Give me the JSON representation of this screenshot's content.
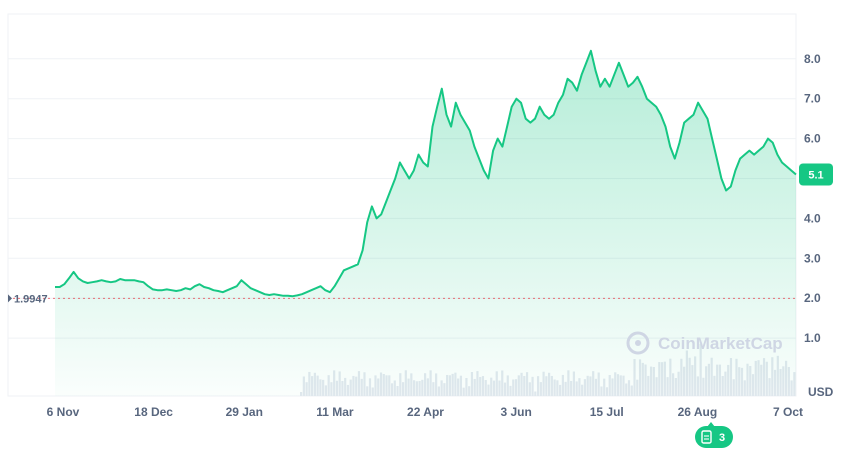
{
  "chart_data": {
    "type": "area",
    "currency_label": "USD",
    "y_ticks": [
      "1.0",
      "2.0",
      "3.0",
      "4.0",
      "5.0",
      "6.0",
      "7.0",
      "8.0"
    ],
    "ylim": [
      0,
      9
    ],
    "x_ticks": [
      "6 Nov",
      "18 Dec",
      "29 Jan",
      "11 Mar",
      "22 Apr",
      "3 Jun",
      "15 Jul",
      "26 Aug",
      "7 Oct"
    ],
    "reference_line": {
      "label": "1.9947",
      "value": 1.9947
    },
    "current_price_label": "5.1",
    "watermark": "CoinMarketCap",
    "events_badge": "3",
    "colors": {
      "line": "#16c784",
      "reference": "#ea3943",
      "badge": "#16c784"
    },
    "series": [
      {
        "values": [
          2.28,
          2.28,
          2.35,
          2.5,
          2.66,
          2.5,
          2.42,
          2.38,
          2.4,
          2.42,
          2.45,
          2.42,
          2.4,
          2.42,
          2.48,
          2.45,
          2.45,
          2.45,
          2.42,
          2.4,
          2.3,
          2.22,
          2.2,
          2.2,
          2.22,
          2.2,
          2.18,
          2.2,
          2.25,
          2.22,
          2.3,
          2.35,
          2.28,
          2.25,
          2.2,
          2.18,
          2.15,
          2.2,
          2.25,
          2.3,
          2.45,
          2.35,
          2.25,
          2.2,
          2.15,
          2.1,
          2.08,
          2.1,
          2.08,
          2.06,
          2.06,
          2.05,
          2.07,
          2.1,
          2.15,
          2.2,
          2.25,
          2.3,
          2.2,
          2.15,
          2.3,
          2.5,
          2.7,
          2.75,
          2.8,
          2.85,
          3.2,
          3.9,
          4.3,
          4.0,
          4.1,
          4.4,
          4.7,
          5.0,
          5.4,
          5.2,
          5.0,
          5.2,
          5.6,
          5.4,
          5.3,
          6.3,
          6.8,
          7.25,
          6.6,
          6.3,
          6.9,
          6.6,
          6.4,
          6.2,
          5.8,
          5.5,
          5.2,
          5.0,
          5.7,
          6.0,
          5.8,
          6.3,
          6.8,
          7.0,
          6.9,
          6.5,
          6.4,
          6.5,
          6.8,
          6.6,
          6.5,
          6.6,
          6.9,
          7.1,
          7.5,
          7.4,
          7.2,
          7.6,
          7.9,
          8.2,
          7.7,
          7.3,
          7.5,
          7.3,
          7.6,
          7.9,
          7.6,
          7.3,
          7.4,
          7.55,
          7.3,
          7.0,
          6.9,
          6.8,
          6.6,
          6.3,
          5.8,
          5.5,
          5.9,
          6.4,
          6.5,
          6.6,
          6.9,
          6.7,
          6.5,
          6.0,
          5.5,
          5.0,
          4.7,
          4.8,
          5.2,
          5.5,
          5.6,
          5.7,
          5.6,
          5.7,
          5.8,
          6.0,
          5.9,
          5.6,
          5.4,
          5.3,
          5.2,
          5.1
        ]
      }
    ]
  }
}
